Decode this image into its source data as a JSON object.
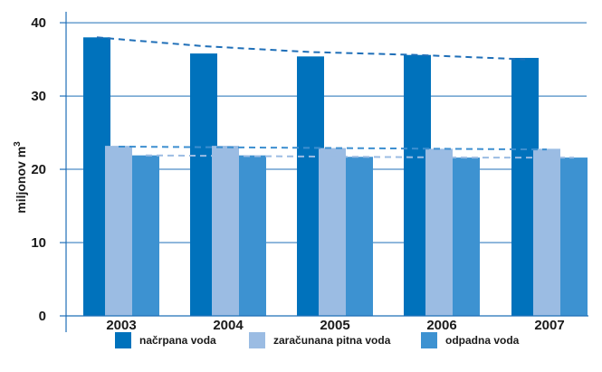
{
  "chart_data": {
    "type": "bar",
    "ylabel_main": "miljonov m",
    "ylabel_sup": "3",
    "categories": [
      "2003",
      "2004",
      "2005",
      "2006",
      "2007"
    ],
    "series": [
      {
        "name": "načrpana voda",
        "color": "#0072bc",
        "values": [
          38.0,
          35.8,
          35.4,
          35.6,
          35.2
        ]
      },
      {
        "name": "zaračunana pitna voda",
        "color": "#9bbce3",
        "values": [
          23.2,
          23.2,
          22.9,
          22.8,
          22.8
        ]
      },
      {
        "name": "odpadna voda",
        "color": "#3d92d1",
        "values": [
          21.9,
          21.9,
          21.7,
          21.6,
          21.6
        ]
      }
    ],
    "trend_lines": [
      {
        "series": "načrpana voda",
        "color": "#1f6fb8",
        "values": [
          38.0,
          36.8,
          36.0,
          35.6,
          35.0
        ]
      },
      {
        "series": "zaračunana pitna voda",
        "color": "#3d8fd0",
        "values": [
          23.1,
          23.0,
          22.9,
          22.8,
          22.7
        ]
      },
      {
        "series": "odpadna voda",
        "color": "#9bbce3",
        "values": [
          21.9,
          21.8,
          21.7,
          21.6,
          21.6
        ]
      }
    ],
    "yticks": [
      "0",
      "10",
      "20",
      "30",
      "40"
    ],
    "ylim": [
      0,
      41
    ],
    "grid": true,
    "legend_position": "bottom"
  }
}
